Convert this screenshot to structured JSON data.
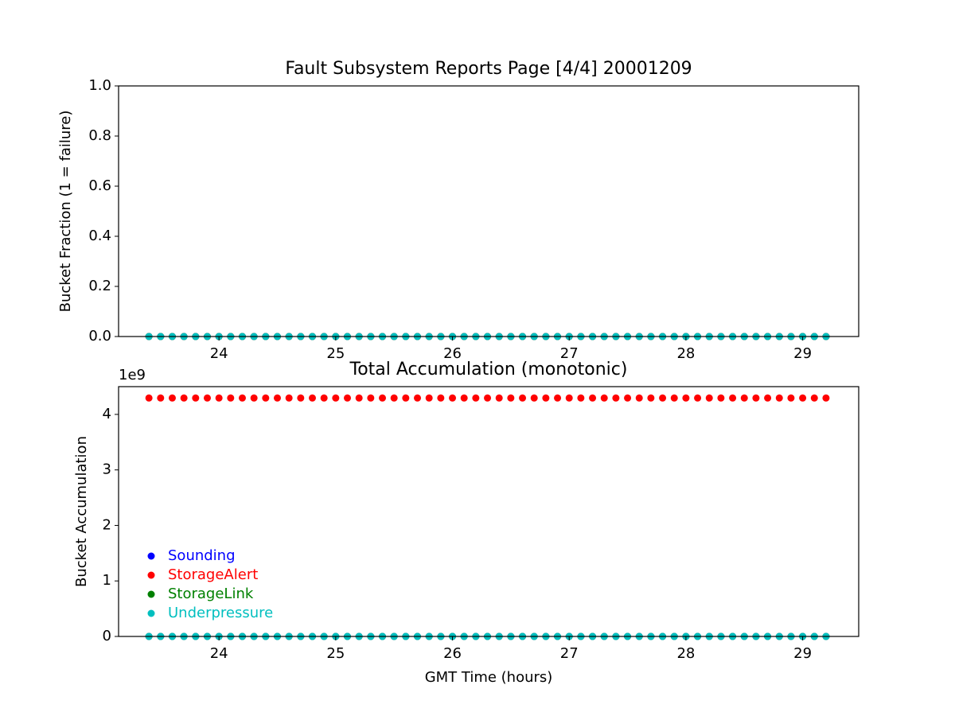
{
  "chart_data": [
    {
      "type": "scatter",
      "title": "Fault Subsystem Reports Page [4/4] 20001209",
      "y_label": "Bucket Fraction (1 = failure)",
      "x": [
        23.4,
        23.5,
        23.6,
        23.7,
        23.8,
        23.9,
        24,
        24.1,
        24.2,
        24.3,
        24.4,
        24.5,
        24.6,
        24.7,
        24.8,
        24.9,
        25,
        25.1,
        25.2,
        25.3,
        25.4,
        25.5,
        25.6,
        25.7,
        25.8,
        25.9,
        26,
        26.1,
        26.2,
        26.3,
        26.4,
        26.5,
        26.6,
        26.7,
        26.8,
        26.9,
        27,
        27.1,
        27.2,
        27.3,
        27.4,
        27.5,
        27.6,
        27.7,
        27.8,
        27.9,
        28,
        28.1,
        28.2,
        28.3,
        28.4,
        28.5,
        28.6,
        28.7,
        28.8,
        28.9,
        29,
        29.1,
        29.2
      ],
      "series": [
        {
          "color": "#0000ff",
          "values": [
            0,
            0,
            0,
            0,
            0,
            0,
            0,
            0,
            0,
            0,
            0,
            0,
            0,
            0,
            0,
            0,
            0,
            0,
            0,
            0,
            0,
            0,
            0,
            0,
            0,
            0,
            0,
            0,
            0,
            0,
            0,
            0,
            0,
            0,
            0,
            0,
            0,
            0,
            0,
            0,
            0,
            0,
            0,
            0,
            0,
            0,
            0,
            0,
            0,
            0,
            0,
            0,
            0,
            0,
            0,
            0,
            0,
            0,
            0
          ]
        },
        {
          "color": "#ff0000",
          "values": [
            0,
            0,
            0,
            0,
            0,
            0,
            0,
            0,
            0,
            0,
            0,
            0,
            0,
            0,
            0,
            0,
            0,
            0,
            0,
            0,
            0,
            0,
            0,
            0,
            0,
            0,
            0,
            0,
            0,
            0,
            0,
            0,
            0,
            0,
            0,
            0,
            0,
            0,
            0,
            0,
            0,
            0,
            0,
            0,
            0,
            0,
            0,
            0,
            0,
            0,
            0,
            0,
            0,
            0,
            0,
            0,
            0,
            0,
            0
          ]
        },
        {
          "color": "#008000",
          "values": [
            0,
            0,
            0,
            0,
            0,
            0,
            0,
            0,
            0,
            0,
            0,
            0,
            0,
            0,
            0,
            0,
            0,
            0,
            0,
            0,
            0,
            0,
            0,
            0,
            0,
            0,
            0,
            0,
            0,
            0,
            0,
            0,
            0,
            0,
            0,
            0,
            0,
            0,
            0,
            0,
            0,
            0,
            0,
            0,
            0,
            0,
            0,
            0,
            0,
            0,
            0,
            0,
            0,
            0,
            0,
            0,
            0,
            0,
            0
          ]
        },
        {
          "color": "#00bfbf",
          "values": [
            0,
            0,
            0,
            0,
            0,
            0,
            0,
            0,
            0,
            0,
            0,
            0,
            0,
            0,
            0,
            0,
            0,
            0,
            0,
            0,
            0,
            0,
            0,
            0,
            0,
            0,
            0,
            0,
            0,
            0,
            0,
            0,
            0,
            0,
            0,
            0,
            0,
            0,
            0,
            0,
            0,
            0,
            0,
            0,
            0,
            0,
            0,
            0,
            0,
            0,
            0,
            0,
            0,
            0,
            0,
            0,
            0,
            0,
            0
          ]
        }
      ],
      "xlim": [
        23.14,
        29.48
      ],
      "xticks": [
        24,
        25,
        26,
        27,
        28,
        29
      ],
      "ylim": [
        0,
        1
      ],
      "yticks": [
        {
          "value": 0,
          "label": "0.0"
        },
        0.2,
        0.4,
        0.6,
        0.8,
        {
          "value": 1,
          "label": "1.0"
        }
      ]
    },
    {
      "type": "scatter",
      "title": "Total Accumulation (monotonic)",
      "x_label": "GMT Time (hours)",
      "y_label": "Bucket Accumulation",
      "y_offset_label": "1e9",
      "x": [
        23.4,
        23.5,
        23.6,
        23.7,
        23.8,
        23.9,
        24,
        24.1,
        24.2,
        24.3,
        24.4,
        24.5,
        24.6,
        24.7,
        24.8,
        24.9,
        25,
        25.1,
        25.2,
        25.3,
        25.4,
        25.5,
        25.6,
        25.7,
        25.8,
        25.9,
        26,
        26.1,
        26.2,
        26.3,
        26.4,
        26.5,
        26.6,
        26.7,
        26.8,
        26.9,
        27,
        27.1,
        27.2,
        27.3,
        27.4,
        27.5,
        27.6,
        27.7,
        27.8,
        27.9,
        28,
        28.1,
        28.2,
        28.3,
        28.4,
        28.5,
        28.6,
        28.7,
        28.8,
        28.9,
        29,
        29.1,
        29.2
      ],
      "series": [
        {
          "name": "Sounding",
          "color": "#0000ff",
          "values": [
            0,
            0,
            0,
            0,
            0,
            0,
            0,
            0,
            0,
            0,
            0,
            0,
            0,
            0,
            0,
            0,
            0,
            0,
            0,
            0,
            0,
            0,
            0,
            0,
            0,
            0,
            0,
            0,
            0,
            0,
            0,
            0,
            0,
            0,
            0,
            0,
            0,
            0,
            0,
            0,
            0,
            0,
            0,
            0,
            0,
            0,
            0,
            0,
            0,
            0,
            0,
            0,
            0,
            0,
            0,
            0,
            0,
            0,
            0
          ]
        },
        {
          "name": "StorageAlert",
          "color": "#ff0000",
          "values": [
            4294967295,
            4294967295,
            4294967295,
            4294967295,
            4294967295,
            4294967295,
            4294967295,
            4294967295,
            4294967295,
            4294967295,
            4294967295,
            4294967295,
            4294967295,
            4294967295,
            4294967295,
            4294967295,
            4294967295,
            4294967295,
            4294967295,
            4294967295,
            4294967295,
            4294967295,
            4294967295,
            4294967295,
            4294967295,
            4294967295,
            4294967295,
            4294967295,
            4294967295,
            4294967295,
            4294967295,
            4294967295,
            4294967295,
            4294967295,
            4294967295,
            4294967295,
            4294967295,
            4294967295,
            4294967295,
            4294967295,
            4294967295,
            4294967295,
            4294967295,
            4294967295,
            4294967295,
            4294967295,
            4294967295,
            4294967295,
            4294967295,
            4294967295,
            4294967295,
            4294967295,
            4294967295,
            4294967295,
            4294967295,
            4294967295,
            4294967295,
            4294967295,
            4294967295
          ]
        },
        {
          "name": "StorageLink",
          "color": "#008000",
          "values": [
            0,
            0,
            0,
            0,
            0,
            0,
            0,
            0,
            0,
            0,
            0,
            0,
            0,
            0,
            0,
            0,
            0,
            0,
            0,
            0,
            0,
            0,
            0,
            0,
            0,
            0,
            0,
            0,
            0,
            0,
            0,
            0,
            0,
            0,
            0,
            0,
            0,
            0,
            0,
            0,
            0,
            0,
            0,
            0,
            0,
            0,
            0,
            0,
            0,
            0,
            0,
            0,
            0,
            0,
            0,
            0,
            0,
            0,
            0
          ]
        },
        {
          "name": "Underpressure",
          "color": "#00bfbf",
          "values": [
            0,
            0,
            0,
            0,
            0,
            0,
            0,
            0,
            0,
            0,
            0,
            0,
            0,
            0,
            0,
            0,
            0,
            0,
            0,
            0,
            0,
            0,
            0,
            0,
            0,
            0,
            0,
            0,
            0,
            0,
            0,
            0,
            0,
            0,
            0,
            0,
            0,
            0,
            0,
            0,
            0,
            0,
            0,
            0,
            0,
            0,
            0,
            0,
            0,
            0,
            0,
            0,
            0,
            0,
            0,
            0,
            0,
            0,
            0
          ]
        }
      ],
      "xlim": [
        23.14,
        29.48
      ],
      "xticks": [
        24,
        25,
        26,
        27,
        28,
        29
      ],
      "ylim": [
        0,
        4500000000
      ],
      "yticks": [
        0,
        {
          "value": 1000000000,
          "label": "1"
        },
        {
          "value": 2000000000,
          "label": "2"
        },
        {
          "value": 3000000000,
          "label": "3"
        },
        {
          "value": 4000000000,
          "label": "4"
        }
      ],
      "legend": "lower left"
    }
  ]
}
